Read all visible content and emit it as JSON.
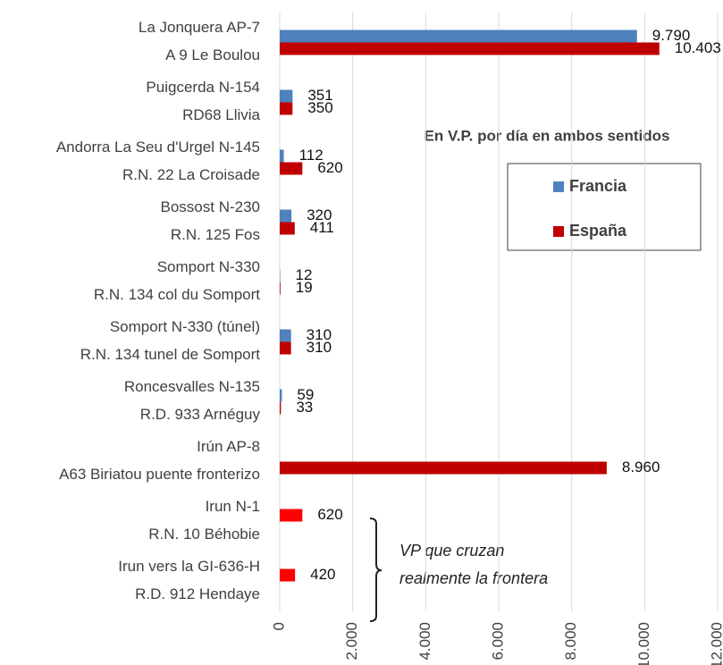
{
  "chart_data": {
    "type": "bar",
    "orientation": "horizontal",
    "subtitle": "En V.P. por día en ambos sentidos",
    "bracket_note": [
      "VP que cruzan",
      "realmente la frontera"
    ],
    "categories": [
      [
        "La Jonquera AP-7",
        "A 9 Le Boulou"
      ],
      [
        "Puigcerda N-154",
        "RD68 Llivia"
      ],
      [
        "Andorra La Seu d'Urgel N-145",
        "R.N. 22 La Croisade"
      ],
      [
        "Bossost N-230",
        "R.N. 125 Fos"
      ],
      [
        "Somport N-330",
        "R.N. 134 col du Somport"
      ],
      [
        "Somport N-330 (túnel)",
        "R.N. 134 tunel de Somport"
      ],
      [
        "Roncesvalles N-135",
        "R.D. 933 Arnéguy"
      ],
      [
        "Irún AP-8",
        "A63 Biriatou puente fronterizo"
      ],
      [
        "Irun N-1",
        "R.N. 10 Béhobie"
      ],
      [
        "Irun vers la GI-636-H",
        "R.D. 912 Hendaye"
      ]
    ],
    "series": [
      {
        "name": "Francia",
        "color": "#4f81bd",
        "values": [
          9790,
          351,
          112,
          320,
          12,
          310,
          59,
          null,
          null,
          null
        ],
        "value_labels": [
          "9.790",
          "351",
          "112",
          "320",
          "12",
          "310",
          "59",
          null,
          null,
          null
        ]
      },
      {
        "name": "España",
        "color": "#c00000",
        "values": [
          10403,
          350,
          620,
          411,
          19,
          310,
          33,
          8960,
          null,
          null
        ],
        "value_labels": [
          "10.403",
          "350",
          "620",
          "411",
          "19",
          "310",
          "33",
          "8.960",
          null,
          null
        ]
      },
      {
        "color": "#ff0000",
        "values": [
          null,
          null,
          null,
          null,
          null,
          null,
          null,
          null,
          620,
          420
        ],
        "value_labels": [
          null,
          null,
          null,
          null,
          null,
          null,
          null,
          null,
          "620",
          "420"
        ]
      }
    ],
    "xlim": [
      0,
      12000
    ],
    "xticks": [
      0,
      {
        "value": 2000,
        "label": "2.000"
      },
      {
        "value": 4000,
        "label": "4.000"
      },
      {
        "value": 6000,
        "label": "6.000"
      },
      {
        "value": 8000,
        "label": "8.000"
      },
      {
        "value": 10000,
        "label": "10.000"
      },
      {
        "value": 12000,
        "label": "12.000"
      }
    ],
    "grid": true
  }
}
